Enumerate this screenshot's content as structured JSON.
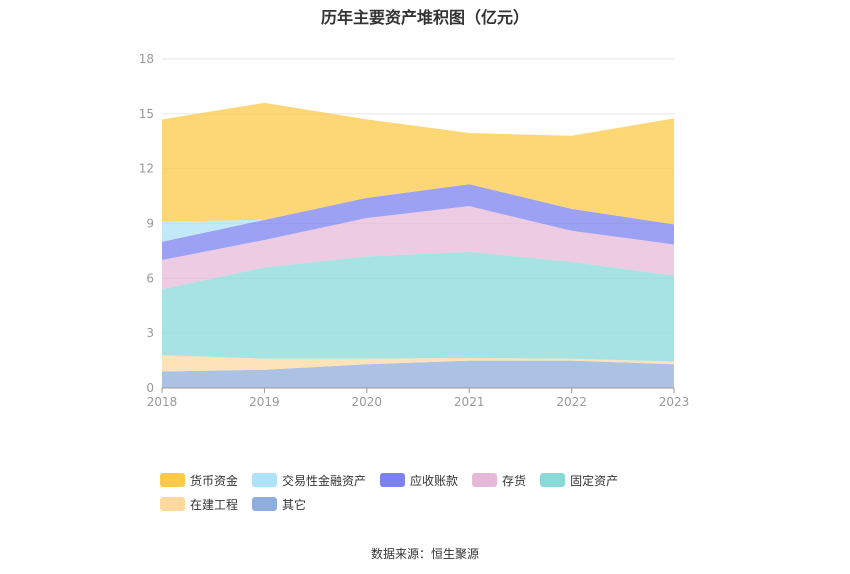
{
  "title": "历年主要资产堆积图（亿元）",
  "source": "数据来源：恒生聚源",
  "chart_data": {
    "type": "area",
    "stacked": true,
    "title": "历年主要资产堆积图（亿元）",
    "x": [
      "2018",
      "2019",
      "2020",
      "2021",
      "2022",
      "2023"
    ],
    "ylim": [
      0,
      18
    ],
    "yticks": [
      0,
      3,
      6,
      9,
      12,
      15,
      18
    ],
    "grid": true,
    "legend_position": "bottom",
    "series": [
      {
        "name": "其它",
        "color": "#90aedb",
        "values": [
          0.9,
          1.0,
          1.3,
          1.5,
          1.5,
          1.3
        ]
      },
      {
        "name": "在建工程",
        "color": "#fdd9a0",
        "values": [
          0.9,
          0.6,
          0.3,
          0.15,
          0.1,
          0.15
        ]
      },
      {
        "name": "固定资产",
        "color": "#89d9d8",
        "values": [
          3.6,
          5.0,
          5.6,
          5.8,
          5.3,
          4.7
        ]
      },
      {
        "name": "存货",
        "color": "#e6b9da",
        "values": [
          1.6,
          1.5,
          2.1,
          2.5,
          1.7,
          1.7
        ]
      },
      {
        "name": "应收账款",
        "color": "#7c81f0",
        "values": [
          1.0,
          1.1,
          1.1,
          1.2,
          1.2,
          1.1
        ]
      },
      {
        "name": "交易性金融资产",
        "color": "#aee2f6",
        "values": [
          1.1,
          0.0,
          0.0,
          0.0,
          0.0,
          0.0
        ]
      },
      {
        "name": "货币资金",
        "color": "#fcc948",
        "values": [
          5.6,
          6.4,
          4.3,
          2.8,
          4.0,
          5.8
        ]
      }
    ],
    "legend_order": [
      "货币资金",
      "交易性金融资产",
      "应收账款",
      "存货",
      "固定资产",
      "在建工程",
      "其它"
    ]
  }
}
